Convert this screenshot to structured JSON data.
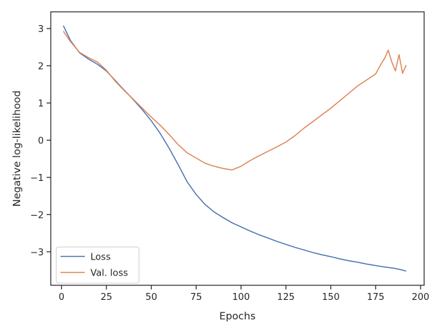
{
  "chart_data": {
    "type": "line",
    "title": "",
    "xlabel": "Epochs",
    "ylabel": "Negative log-likelihood",
    "xlim": [
      -6,
      202
    ],
    "ylim": [
      -3.9,
      3.45
    ],
    "x_ticks": [
      0,
      25,
      50,
      75,
      100,
      125,
      150,
      175,
      200
    ],
    "y_ticks": [
      -3,
      -2,
      -1,
      0,
      1,
      2,
      3
    ],
    "grid": false,
    "legend_position": "lower-left",
    "series": [
      {
        "name": "Loss",
        "color": "#4c72b0",
        "x": [
          1,
          5,
          10,
          15,
          20,
          25,
          30,
          35,
          40,
          45,
          50,
          55,
          60,
          65,
          70,
          75,
          80,
          85,
          90,
          95,
          100,
          105,
          110,
          115,
          120,
          125,
          130,
          135,
          140,
          145,
          150,
          155,
          160,
          165,
          170,
          175,
          180,
          185,
          190,
          192
        ],
        "y": [
          3.08,
          2.68,
          2.35,
          2.18,
          2.04,
          1.86,
          1.6,
          1.34,
          1.09,
          0.82,
          0.52,
          0.18,
          -0.22,
          -0.66,
          -1.12,
          -1.46,
          -1.73,
          -1.93,
          -2.08,
          -2.22,
          -2.33,
          -2.44,
          -2.54,
          -2.63,
          -2.72,
          -2.8,
          -2.88,
          -2.95,
          -3.02,
          -3.08,
          -3.13,
          -3.19,
          -3.24,
          -3.28,
          -3.33,
          -3.37,
          -3.41,
          -3.44,
          -3.49,
          -3.52
        ]
      },
      {
        "name": "Val. loss",
        "color": "#dd8452",
        "x": [
          1,
          5,
          10,
          15,
          20,
          25,
          30,
          35,
          40,
          45,
          50,
          55,
          60,
          65,
          70,
          75,
          80,
          85,
          90,
          95,
          100,
          105,
          110,
          115,
          120,
          125,
          130,
          135,
          140,
          145,
          150,
          155,
          160,
          165,
          170,
          175,
          178,
          180,
          182,
          184,
          186,
          188,
          190,
          192
        ],
        "y": [
          2.93,
          2.65,
          2.36,
          2.22,
          2.1,
          1.88,
          1.58,
          1.33,
          1.1,
          0.86,
          0.62,
          0.4,
          0.15,
          -0.12,
          -0.34,
          -0.48,
          -0.62,
          -0.7,
          -0.76,
          -0.8,
          -0.7,
          -0.55,
          -0.42,
          -0.3,
          -0.18,
          -0.05,
          0.12,
          0.32,
          0.5,
          0.68,
          0.86,
          1.06,
          1.26,
          1.46,
          1.62,
          1.78,
          2.05,
          2.2,
          2.42,
          2.1,
          1.86,
          2.3,
          1.8,
          2.02
        ]
      }
    ]
  }
}
